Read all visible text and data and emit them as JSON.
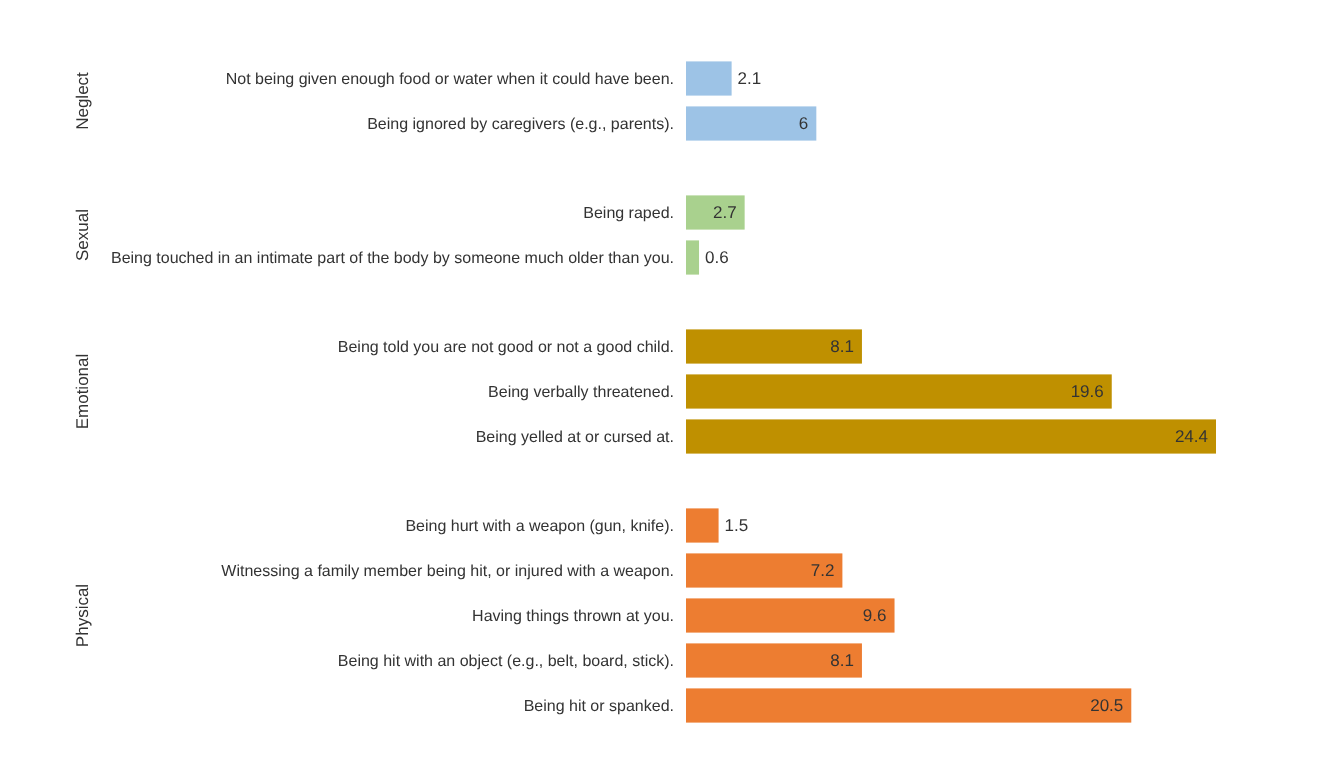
{
  "chart_data": [
    {
      "type": "bar",
      "orientation": "horizontal",
      "ylabel": "Neglect",
      "categories": [
        "Not being given enough food or water when it could have been.",
        "Being ignored by caregivers (e.g., parents)."
      ],
      "values": [
        2.1,
        6
      ],
      "color": "#9dc3e6",
      "data_labels": true
    },
    {
      "type": "bar",
      "orientation": "horizontal",
      "ylabel": "Sexual",
      "categories": [
        "Being raped.",
        "Being touched in an intimate part of the body by someone much older than you."
      ],
      "values": [
        2.7,
        0.6
      ],
      "color": "#a9d18e",
      "data_labels": true
    },
    {
      "type": "bar",
      "orientation": "horizontal",
      "ylabel": "Emotional",
      "categories": [
        "Being told you are not good or not a good child.",
        "Being verbally threatened.",
        "Being yelled at or cursed at."
      ],
      "values": [
        8.1,
        19.6,
        24.4
      ],
      "color": "#bf9000",
      "data_labels": true
    },
    {
      "type": "bar",
      "orientation": "horizontal",
      "ylabel": "Physical",
      "categories": [
        "Being hurt with a weapon (gun, knife).",
        "Witnessing a family member being hit, or injured with a weapon.",
        "Having things thrown at you.",
        "Being hit with an object (e.g., belt, board, stick).",
        "Being hit or spanked."
      ],
      "values": [
        1.5,
        7.2,
        9.6,
        8.1,
        20.5
      ],
      "color": "#ed7d31",
      "data_labels": true
    }
  ]
}
